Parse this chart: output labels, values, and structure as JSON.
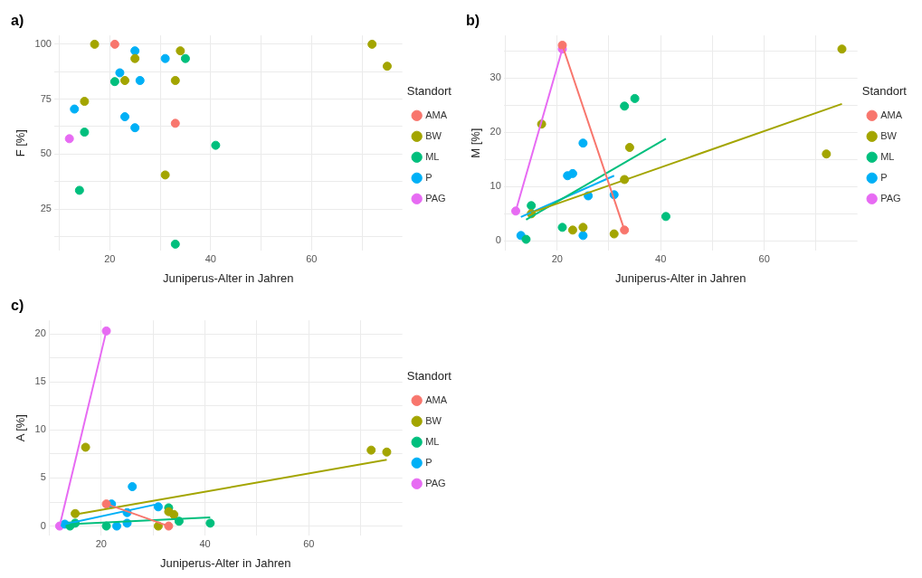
{
  "chart_data": [
    {
      "type": "scatter",
      "title": "a)",
      "xlabel": "Juniperus-Alter in Jahren",
      "ylabel": "F [%]",
      "legend_title": "Standort",
      "legend": "right",
      "grid": true,
      "marker": "circle",
      "xlim": [
        9,
        78
      ],
      "xticks": [
        {
          "value": 10,
          "label": null
        },
        20,
        {
          "value": 30,
          "label": null
        },
        40,
        {
          "value": 50,
          "label": null
        },
        60,
        {
          "value": 70,
          "label": null
        }
      ],
      "ylim": [
        6,
        104
      ],
      "yticks": [
        {
          "value": 12.5,
          "label": null
        },
        25,
        {
          "value": 37.5,
          "label": null
        },
        50,
        {
          "value": 62.5,
          "label": null
        },
        75,
        {
          "value": 87.5,
          "label": null
        },
        100
      ],
      "series": [
        {
          "name": "AMA",
          "type": "scatter",
          "color": "#f8766d",
          "x": [
            21,
            33
          ],
          "values": [
            100,
            64
          ]
        },
        {
          "name": "BW",
          "type": "scatter",
          "color": "#a3a500",
          "x": [
            17,
            25,
            23,
            15,
            34,
            33,
            31,
            72,
            75
          ],
          "values": [
            100,
            93.5,
            83.5,
            74,
            97,
            83.5,
            40.5,
            100,
            90
          ]
        },
        {
          "name": "ML",
          "type": "scatter",
          "color": "#00bf7d",
          "x": [
            21,
            15,
            14,
            35,
            41,
            33
          ],
          "values": [
            83,
            60,
            33.5,
            93.5,
            54,
            9
          ]
        },
        {
          "name": "P",
          "type": "scatter",
          "color": "#00b0f6",
          "x": [
            13,
            22,
            25,
            26,
            23,
            25,
            31
          ],
          "values": [
            70.5,
            87,
            97,
            83.5,
            67,
            62,
            93.5
          ]
        },
        {
          "name": "PAG",
          "type": "scatter",
          "color": "#e76bf3",
          "x": [
            12
          ],
          "values": [
            57
          ]
        }
      ]
    },
    {
      "type": "scatter",
      "title": "b)",
      "xlabel": "Juniperus-Alter in Jahren",
      "ylabel": "M [%]",
      "legend_title": "Standort",
      "legend": "right",
      "grid": true,
      "marker": "circle",
      "xlim": [
        9.7,
        78
      ],
      "xticks": [
        {
          "value": 10,
          "label": null
        },
        20,
        {
          "value": 30,
          "label": null
        },
        40,
        {
          "value": 50,
          "label": null
        },
        60,
        {
          "value": 70,
          "label": null
        }
      ],
      "ylim": [
        -1.8,
        37.8
      ],
      "yticks": [
        0,
        {
          "value": 5,
          "label": null
        },
        10,
        {
          "value": 15,
          "label": null
        },
        20,
        {
          "value": 25,
          "label": null
        },
        30,
        {
          "value": 35,
          "label": null
        }
      ],
      "series": [
        {
          "name": "AMA",
          "type": "scatter",
          "color": "#f8766d",
          "x": [
            21,
            33
          ],
          "values": [
            36,
            2
          ]
        },
        {
          "name": "BW",
          "type": "scatter",
          "color": "#a3a500",
          "x": [
            15,
            17,
            23,
            25,
            31,
            33,
            34,
            72,
            75
          ],
          "values": [
            5,
            21.5,
            2,
            2.5,
            1.3,
            11.3,
            17.2,
            16,
            35.3
          ]
        },
        {
          "name": "ML",
          "type": "scatter",
          "color": "#00bf7d",
          "x": [
            15,
            14,
            21,
            33,
            35,
            41
          ],
          "values": [
            6.5,
            0.3,
            2.5,
            24.8,
            26.2,
            4.5
          ]
        },
        {
          "name": "P",
          "type": "scatter",
          "color": "#00b0f6",
          "x": [
            13,
            22,
            23,
            25,
            25,
            26,
            31
          ],
          "values": [
            1,
            12,
            12.4,
            18,
            1,
            8.3,
            8.5
          ]
        },
        {
          "name": "PAG",
          "type": "scatter",
          "color": "#e76bf3",
          "x": [
            12,
            21
          ],
          "values": [
            5.5,
            35.3
          ]
        },
        {
          "type": "line",
          "marker": "none",
          "color": "#f8766d",
          "x": [
            21,
            33
          ],
          "values": [
            36,
            2
          ]
        },
        {
          "type": "line",
          "marker": "none",
          "color": "#a3a500",
          "x": [
            15,
            75
          ],
          "values": [
            5.2,
            25.2
          ]
        },
        {
          "type": "line",
          "marker": "none",
          "color": "#00bf7d",
          "x": [
            14,
            41
          ],
          "values": [
            3.9,
            18.8
          ]
        },
        {
          "type": "line",
          "marker": "none",
          "color": "#00b0f6",
          "x": [
            13,
            31
          ],
          "values": [
            4.4,
            12
          ]
        },
        {
          "type": "line",
          "marker": "none",
          "color": "#e76bf3",
          "x": [
            12,
            21
          ],
          "values": [
            5.5,
            35.3
          ]
        }
      ]
    },
    {
      "type": "scatter",
      "title": "c)",
      "xlabel": "Juniperus-Alter in Jahren",
      "ylabel": "A [%]",
      "legend_title": "Standort",
      "legend": "right",
      "grid": true,
      "marker": "circle",
      "xlim": [
        9.9,
        78
      ],
      "xticks": [
        {
          "value": 10,
          "label": null
        },
        20,
        {
          "value": 30,
          "label": null
        },
        40,
        {
          "value": 50,
          "label": null
        },
        60,
        {
          "value": 70,
          "label": null
        }
      ],
      "ylim": [
        -1,
        21.4
      ],
      "yticks": [
        0,
        {
          "value": 2.5,
          "label": null
        },
        5,
        {
          "value": 7.5,
          "label": null
        },
        10,
        {
          "value": 12.5,
          "label": null
        },
        15,
        {
          "value": 17.5,
          "label": null
        },
        20
      ],
      "series": [
        {
          "name": "AMA",
          "type": "scatter",
          "color": "#f8766d",
          "x": [
            21,
            33
          ],
          "values": [
            2.3,
            0
          ]
        },
        {
          "name": "BW",
          "type": "scatter",
          "color": "#a3a500",
          "x": [
            17,
            15,
            31,
            33,
            34,
            72,
            75
          ],
          "values": [
            8.2,
            1.3,
            0,
            1.5,
            1.2,
            7.9,
            7.7
          ]
        },
        {
          "name": "ML",
          "type": "scatter",
          "color": "#00bf7d",
          "x": [
            14,
            15,
            21,
            33,
            35,
            41
          ],
          "values": [
            0,
            0.3,
            0,
            1.9,
            0.5,
            0.3
          ]
        },
        {
          "name": "P",
          "type": "scatter",
          "color": "#00b0f6",
          "x": [
            13,
            22,
            23,
            25,
            25,
            26,
            31
          ],
          "values": [
            0.2,
            2.3,
            0,
            0.3,
            1.4,
            4.1,
            2
          ]
        },
        {
          "name": "PAG",
          "type": "scatter",
          "color": "#e76bf3",
          "x": [
            12,
            21
          ],
          "values": [
            0,
            20.3
          ]
        },
        {
          "type": "line",
          "marker": "none",
          "color": "#f8766d",
          "x": [
            21,
            33
          ],
          "values": [
            2.3,
            0
          ]
        },
        {
          "type": "line",
          "marker": "none",
          "color": "#a3a500",
          "x": [
            15,
            75
          ],
          "values": [
            1.2,
            6.9
          ]
        },
        {
          "type": "line",
          "marker": "none",
          "color": "#00bf7d",
          "x": [
            14,
            41
          ],
          "values": [
            0.2,
            0.9
          ]
        },
        {
          "type": "line",
          "marker": "none",
          "color": "#00b0f6",
          "x": [
            13,
            31
          ],
          "values": [
            0.2,
            2.3
          ]
        },
        {
          "type": "line",
          "marker": "none",
          "color": "#e76bf3",
          "x": [
            12,
            21
          ],
          "values": [
            0,
            20.3
          ]
        }
      ]
    }
  ]
}
